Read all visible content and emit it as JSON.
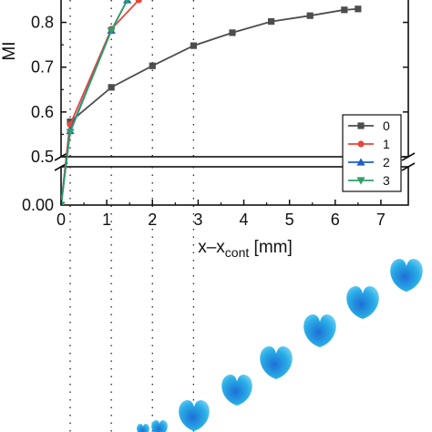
{
  "chart_data": {
    "type": "line",
    "title": "",
    "xlabel_main": "x–x",
    "xlabel_sub": "cont",
    "xlabel_unit": " [mm]",
    "ylabel": "MI",
    "xlim": [
      0,
      7.6
    ],
    "ylim_upper": [
      0.5,
      0.85
    ],
    "ylim_lower": [
      0.0,
      0.05
    ],
    "y_axis_break": true,
    "x_ticks": [
      "0",
      "1",
      "2",
      "3",
      "4",
      "5",
      "6",
      "7"
    ],
    "y_ticks_upper": [
      "0.5",
      "0.6",
      "0.7",
      "0.8"
    ],
    "y_ticks_lower": [
      "0.00"
    ],
    "vertical_reference_lines_x": [
      0.2,
      1.1,
      2.0,
      2.9
    ],
    "grid": false,
    "legend_position": "bottom-right",
    "series": [
      {
        "name": "0",
        "color": "#4d4d4d",
        "marker": "square",
        "x": [
          0.0,
          0.2,
          1.1,
          2.0,
          2.9,
          3.75,
          4.6,
          5.45,
          6.2,
          6.5
        ],
        "y": [
          0.0,
          0.578,
          0.655,
          0.703,
          0.748,
          0.777,
          0.802,
          0.815,
          0.828,
          0.83
        ]
      },
      {
        "name": "1",
        "color": "#e8463a",
        "marker": "circle",
        "x": [
          0.0,
          0.2,
          1.1,
          1.7
        ],
        "y": [
          0.0,
          0.572,
          0.785,
          0.85
        ]
      },
      {
        "name": "2",
        "color": "#1f5fc7",
        "marker": "triangle-up",
        "x": [
          0.0,
          0.2,
          1.1,
          1.45
        ],
        "y": [
          0.0,
          0.558,
          0.782,
          0.85
        ]
      },
      {
        "name": "3",
        "color": "#2e9e6a",
        "marker": "triangle-down",
        "x": [
          0.0,
          0.2,
          1.1,
          1.45
        ],
        "y": [
          0.0,
          0.555,
          0.782,
          0.85
        ]
      }
    ],
    "bubble_sequence_color": "#29aee6"
  }
}
